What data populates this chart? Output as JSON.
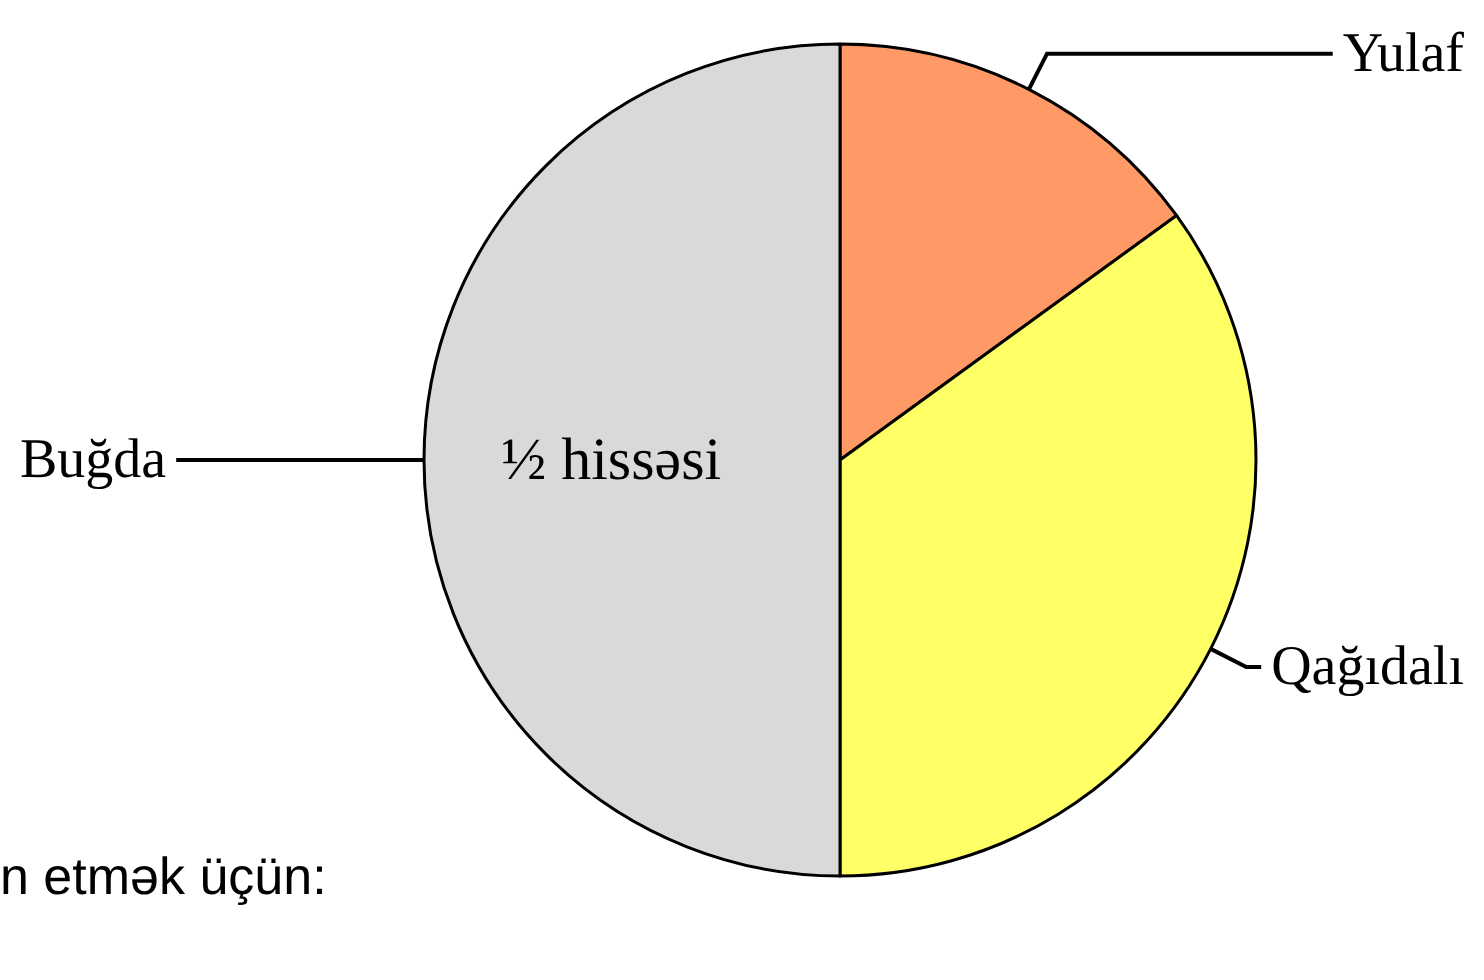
{
  "chart_data": {
    "type": "pie",
    "categories": [
      "Yulaf",
      "Qağıdalı",
      "Buğda"
    ],
    "values": [
      15,
      35,
      50
    ],
    "colors": [
      "#ff9966",
      "#ffff66",
      "#d9d9d9"
    ],
    "value_labels": [
      null,
      null,
      "½ hissəsi"
    ],
    "annotations": [
      "n etmək üçün:"
    ],
    "legend": false
  }
}
